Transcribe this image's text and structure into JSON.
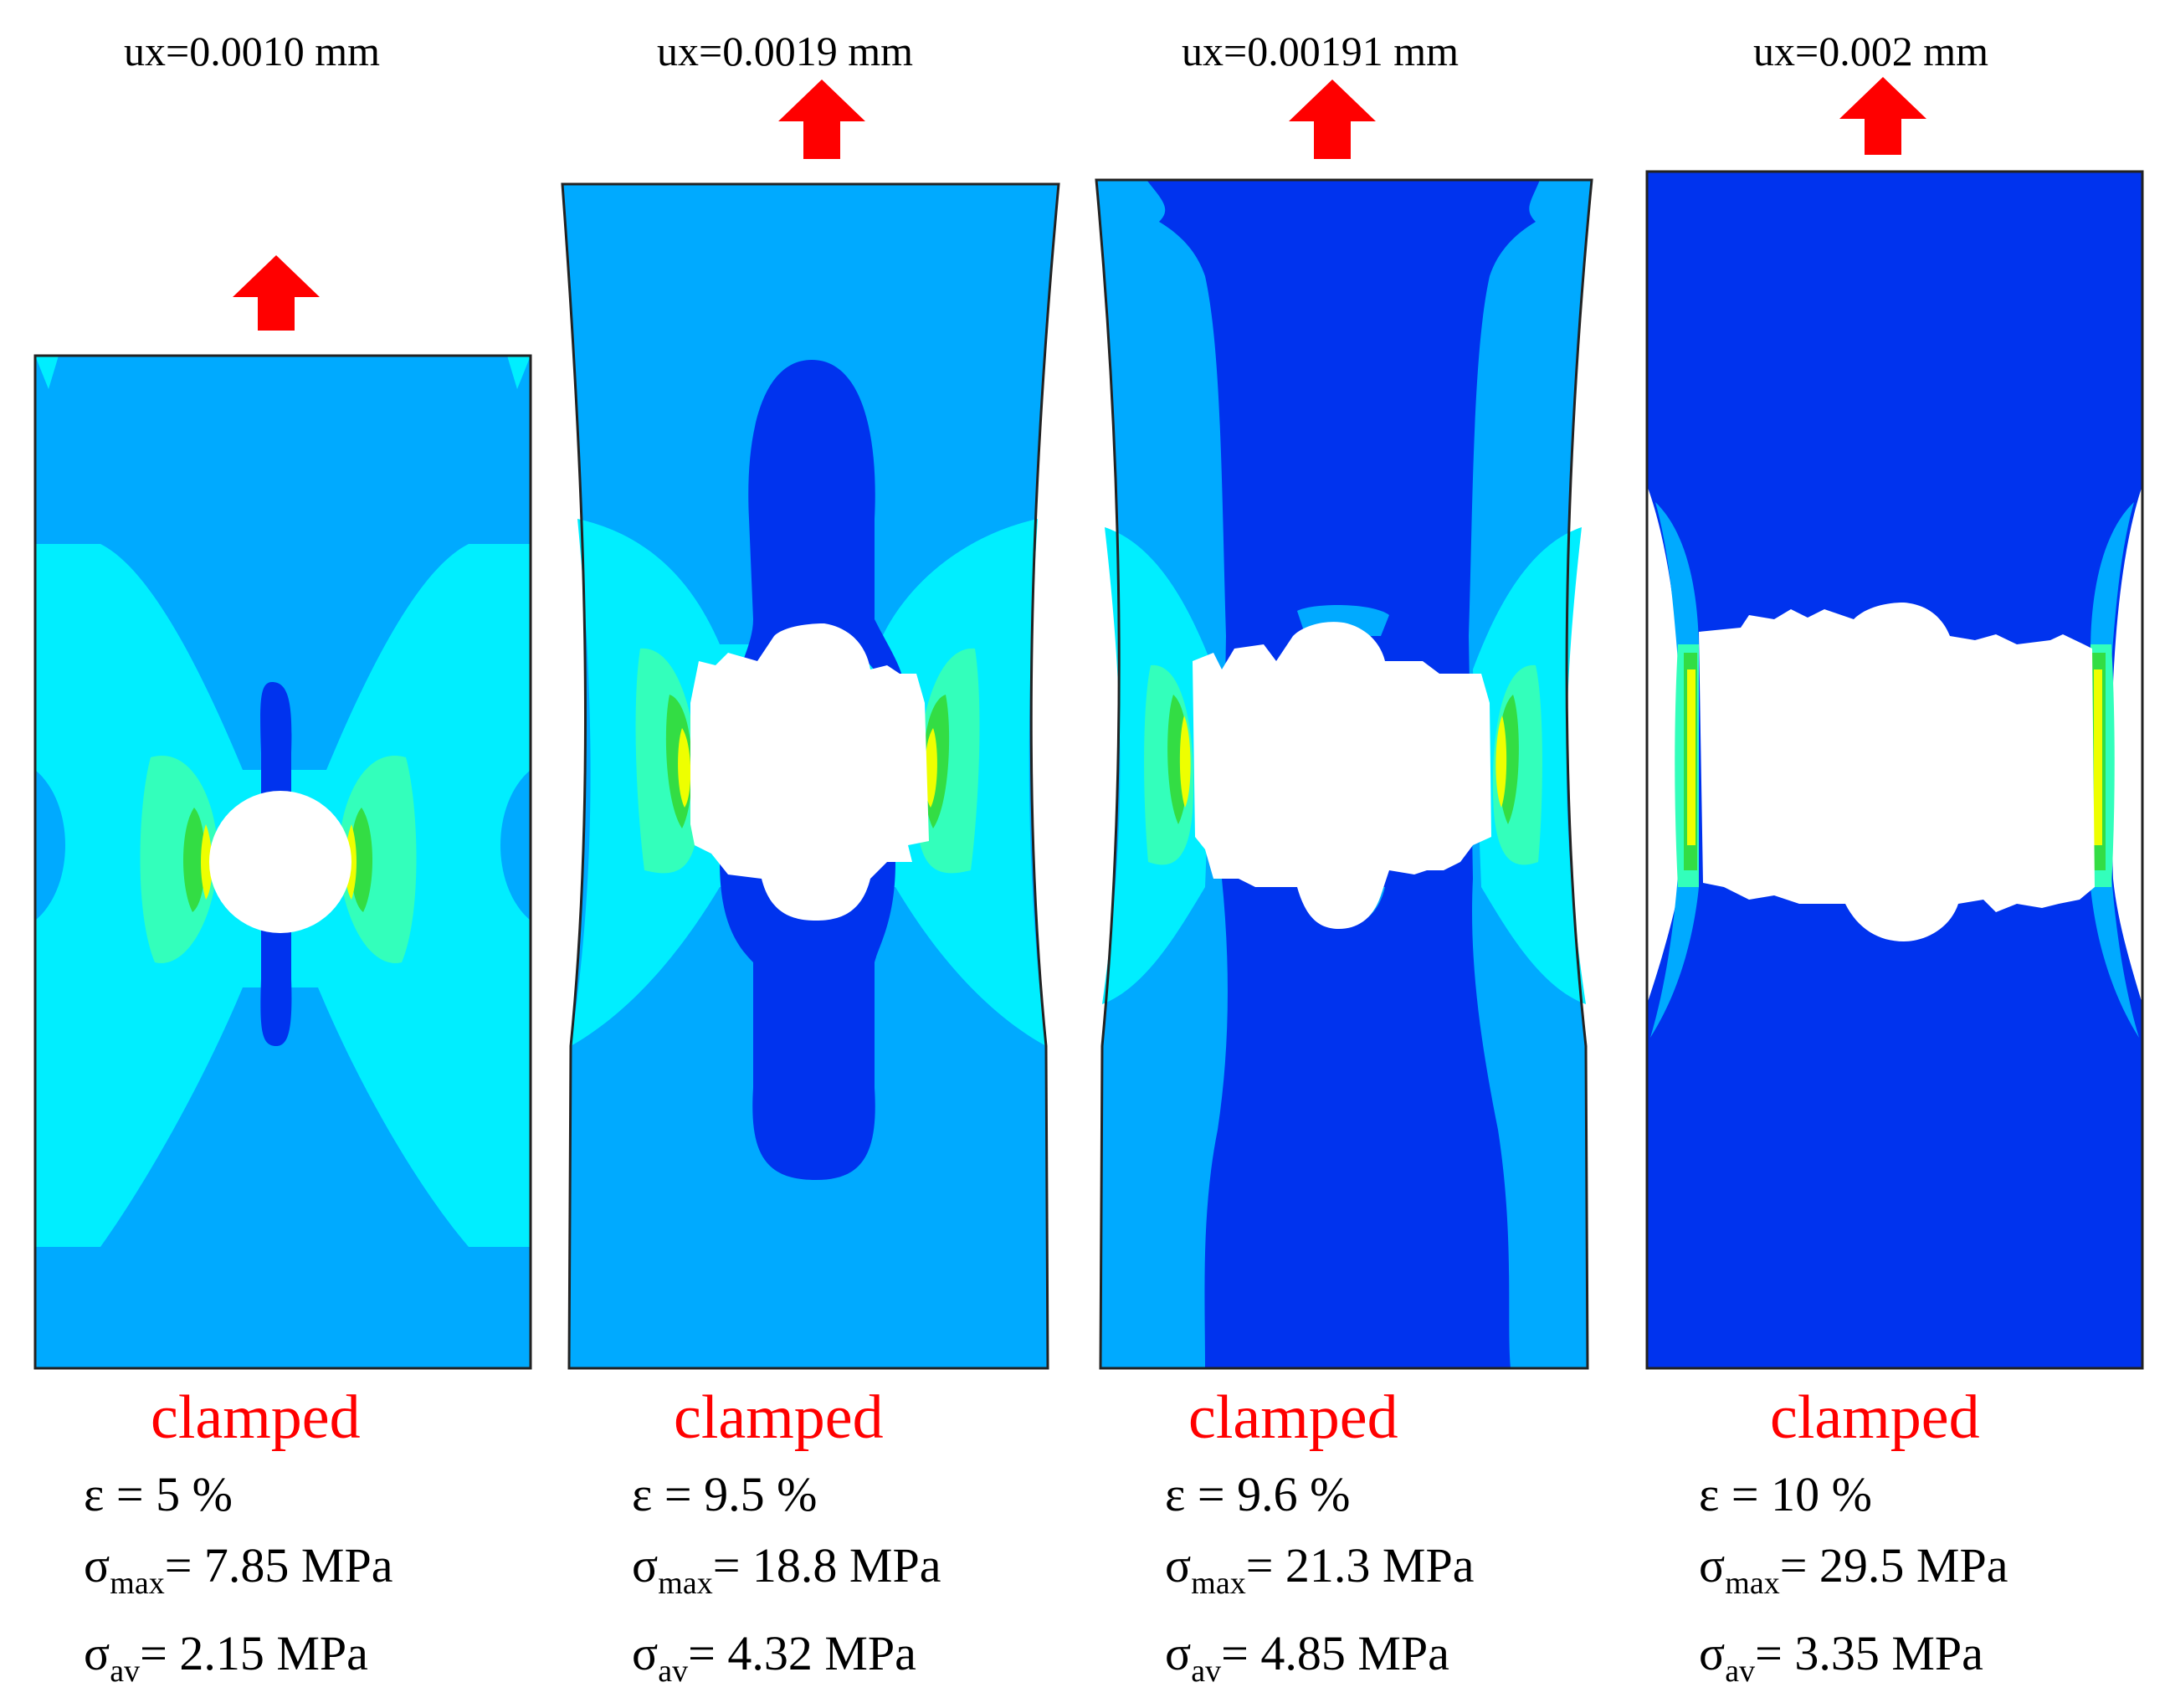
{
  "palette": {
    "deep_blue": "#0033ee",
    "medium_blue": "#00aaff",
    "cyan": "#00eeff",
    "green_cyan": "#33ffbb",
    "green": "#33dd44",
    "yellow": "#eeff00",
    "load_arrow": "#ff0000",
    "clamp_text": "#ff0000",
    "hole": "#ffffff",
    "outline": "#222222"
  },
  "load_arrow_icon": "up-arrow-icon",
  "panels": [
    {
      "ux": "ux",
      "ux_value": "=0.0010 mm",
      "clamp": "clamped",
      "eps": "ε = 5 %",
      "smax_sym": "σ",
      "smax_sub": "max",
      "smax_val": "= 7.85 MPa",
      "sav_sym": "σ",
      "sav_sub": "av",
      "sav_val": "= 2.15 MPa"
    },
    {
      "ux": "ux",
      "ux_value": "=0.0019 mm",
      "clamp": "clamped",
      "eps": "ε = 9.5 %",
      "smax_sym": "σ",
      "smax_sub": "max",
      "smax_val": "= 18.8 MPa",
      "sav_sym": "σ",
      "sav_sub": "av",
      "sav_val": "= 4.32 MPa"
    },
    {
      "ux": "ux",
      "ux_value": "=0.00191 mm",
      "clamp": "clamped",
      "eps": "ε = 9.6 %",
      "smax_sym": "σ",
      "smax_sub": "max",
      "smax_val": "= 21.3 MPa",
      "sav_sym": "σ",
      "sav_sub": "av",
      "sav_val": "= 4.85 MPa"
    },
    {
      "ux": "ux",
      "ux_value": "=0.002 mm",
      "clamp": "clamped",
      "eps": "ε = 10 %",
      "smax_sym": "σ",
      "smax_sub": "max",
      "smax_val": "= 29.5 MPa",
      "sav_sym": "σ",
      "sav_sub": "av",
      "sav_val": "= 3.35 MPa"
    }
  ]
}
